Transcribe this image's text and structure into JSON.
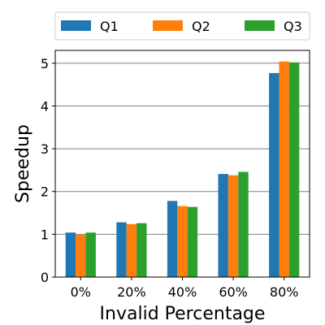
{
  "chart_data": {
    "type": "bar",
    "categories": [
      "0%",
      "20%",
      "40%",
      "60%",
      "80%"
    ],
    "series": [
      {
        "name": "Q1",
        "color": "#1f77b4",
        "values": [
          1.04,
          1.28,
          1.78,
          2.41,
          4.77
        ]
      },
      {
        "name": "Q2",
        "color": "#ff7f0e",
        "values": [
          0.99,
          1.24,
          1.66,
          2.38,
          5.04
        ]
      },
      {
        "name": "Q3",
        "color": "#2ca02c",
        "values": [
          1.04,
          1.26,
          1.64,
          2.46,
          5.02
        ]
      }
    ],
    "xlabel": "Invalid Percentage",
    "ylabel": "Speedup",
    "ylim": [
      0,
      5.3
    ],
    "yticks": [
      "0",
      "1",
      "2",
      "3",
      "4",
      "5"
    ],
    "grid": "horizontal",
    "legend": "top, horizontal"
  }
}
